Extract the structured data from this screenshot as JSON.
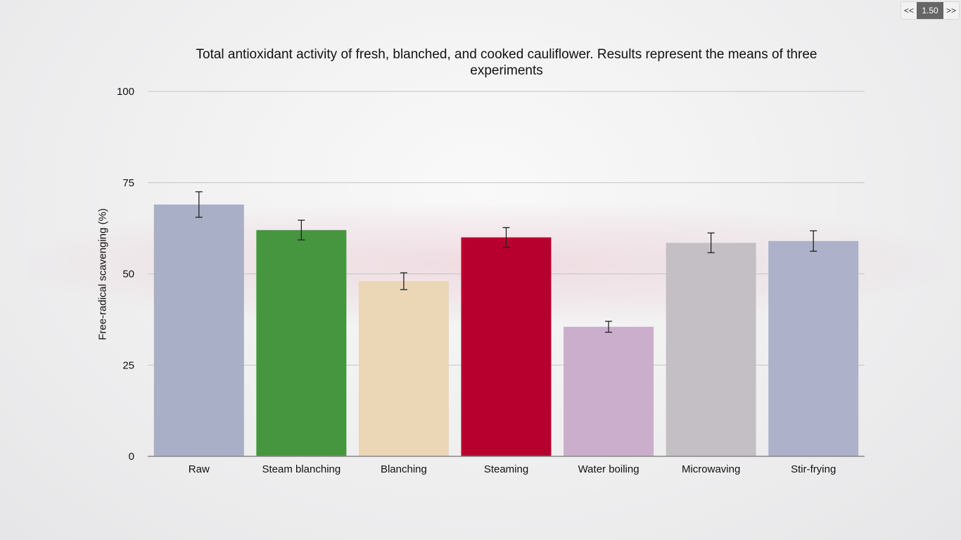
{
  "player": {
    "prev_label": "<<",
    "speed": "1.50",
    "next_label": ">>"
  },
  "chart_data": {
    "type": "bar",
    "title": "Total antioxidant activity of fresh, blanched, and cooked cauliflower. Results represent the means of three experiments",
    "ylabel": "Free-radical scavenging (%)",
    "xlabel": "",
    "ylim": [
      0,
      100
    ],
    "yticks": [
      0,
      25,
      50,
      75,
      100
    ],
    "grid": true,
    "categories": [
      "Raw",
      "Steam blanching",
      "Blanching",
      "Steaming",
      "Water boiling",
      "Microwaving",
      "Stir-frying"
    ],
    "values": [
      69,
      62,
      48,
      60,
      35.5,
      58.5,
      59
    ],
    "errors": [
      3.5,
      2.7,
      2.3,
      2.7,
      1.5,
      2.7,
      2.8
    ],
    "colors": [
      "#a9afc6",
      "#45963f",
      "#ebd6b6",
      "#b8002e",
      "#cbaecb",
      "#c4bfc4",
      "#adb1c9"
    ]
  }
}
